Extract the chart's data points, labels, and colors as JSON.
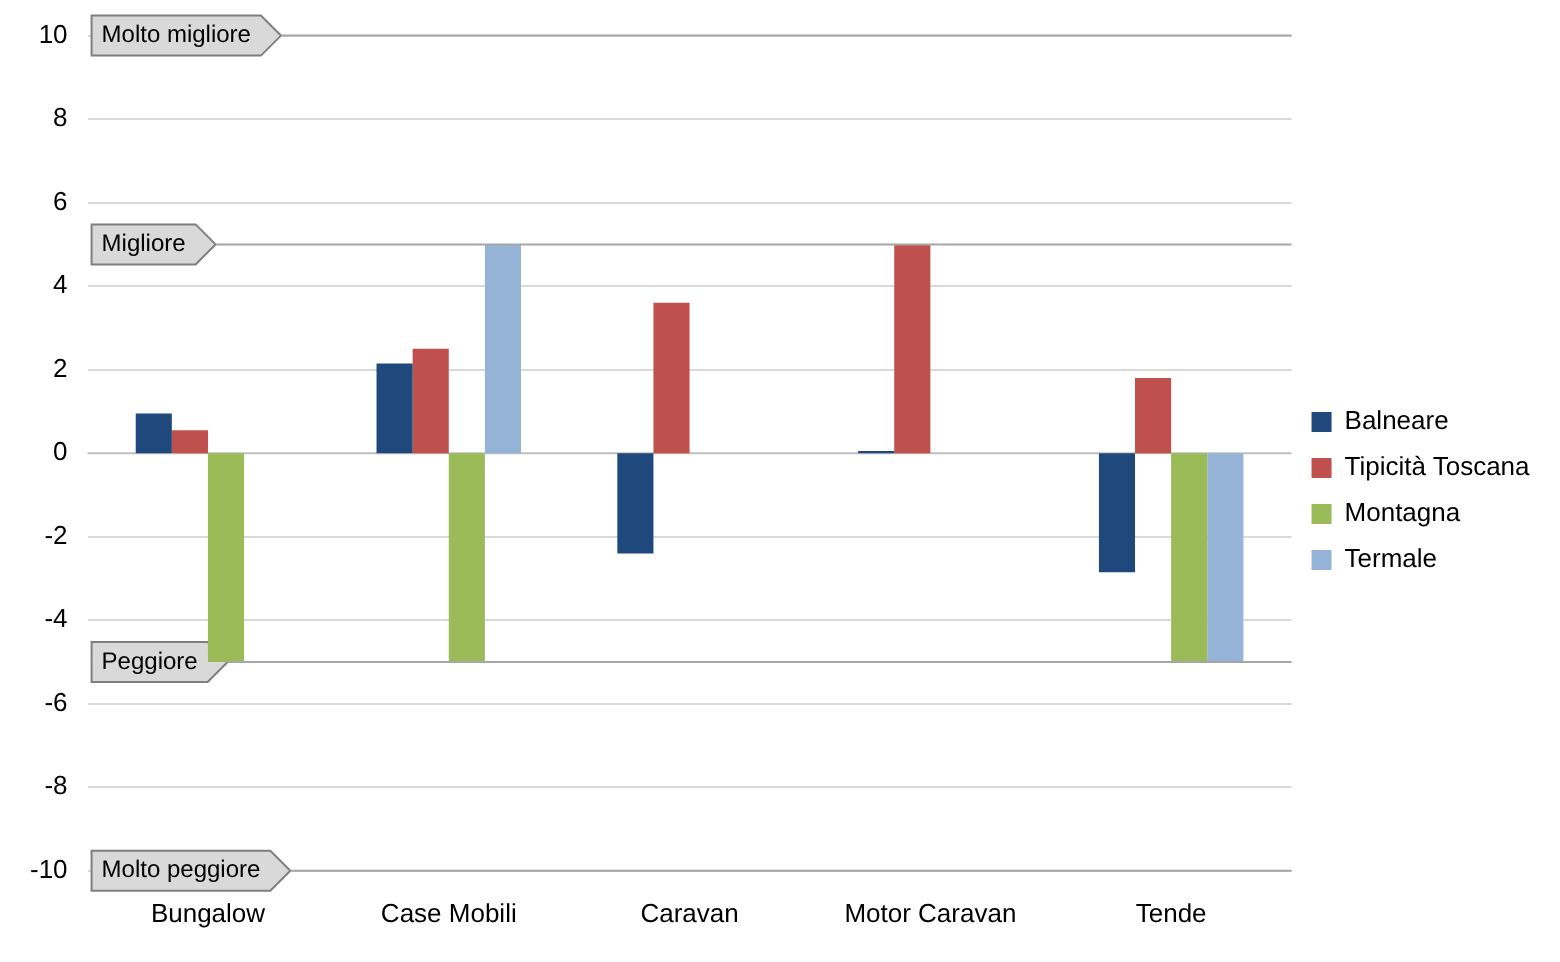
{
  "chart_data": {
    "type": "bar",
    "categories": [
      "Bungalow",
      "Case Mobili",
      "Caravan",
      "Motor Caravan",
      "Tende"
    ],
    "series": [
      {
        "name": "Balneare",
        "color": "#1f497d",
        "values": [
          0.95,
          2.15,
          -2.4,
          0.05,
          -2.85
        ]
      },
      {
        "name": "Tipicità Toscana",
        "color": "#c0504d",
        "values": [
          0.55,
          2.5,
          3.6,
          5,
          1.8
        ]
      },
      {
        "name": "Montagna",
        "color": "#9bbb59",
        "values": [
          -5,
          -5,
          null,
          null,
          -5
        ]
      },
      {
        "name": "Termale",
        "color": "#95b3d7",
        "values": [
          null,
          5,
          null,
          null,
          -5
        ]
      }
    ],
    "ylim": [
      -10,
      10
    ],
    "yticks": [
      -10,
      -8,
      -6,
      -4,
      -2,
      0,
      2,
      4,
      6,
      8,
      10
    ],
    "grid": "y",
    "legend": "right",
    "ref_lines": [
      {
        "axis": "y",
        "value": 10,
        "label": "Molto migliore",
        "color": "#a6a6a6"
      },
      {
        "axis": "y",
        "value": 5,
        "label": "Migliore",
        "color": "#a6a6a6"
      },
      {
        "axis": "y",
        "value": -5,
        "label": "Peggiore",
        "color": "#a6a6a6"
      },
      {
        "axis": "y",
        "value": -10,
        "label": "Molto peggiore",
        "color": "#a6a6a6"
      }
    ]
  }
}
